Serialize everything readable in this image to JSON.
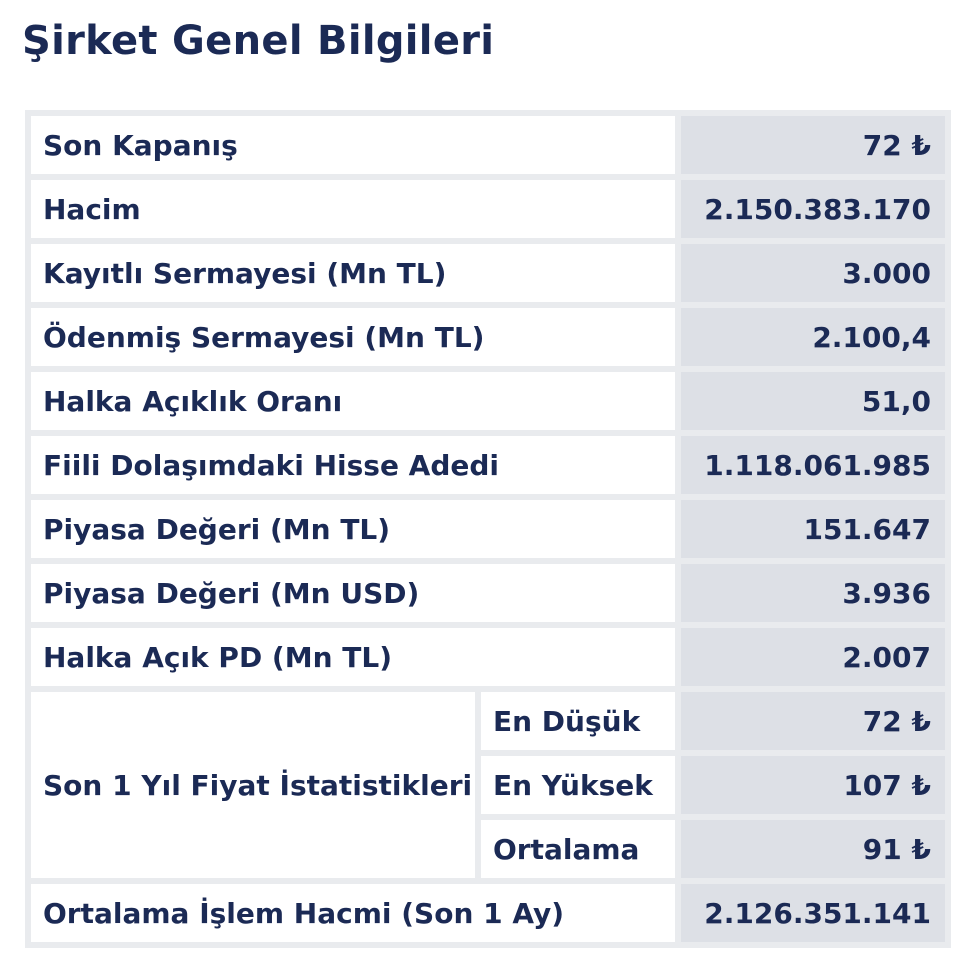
{
  "title": "Şirket Genel Bilgileri",
  "rows": [
    {
      "label": "Son Kapanış",
      "value": "72 ₺"
    },
    {
      "label": "Hacim",
      "value": "2.150.383.170"
    },
    {
      "label": "Kayıtlı Sermayesi (Mn TL)",
      "value": "3.000"
    },
    {
      "label": "Ödenmiş Sermayesi (Mn TL)",
      "value": "2.100,4"
    },
    {
      "label": "Halka Açıklık Oranı",
      "value": "51,0"
    },
    {
      "label": "Fiili Dolaşımdaki Hisse Adedi",
      "value": "1.118.061.985"
    },
    {
      "label": "Piyasa Değeri (Mn TL)",
      "value": "151.647"
    },
    {
      "label": "Piyasa Değeri (Mn USD)",
      "value": "3.936"
    },
    {
      "label": "Halka Açık PD (Mn TL)",
      "value": "2.007"
    }
  ],
  "price_stats": {
    "label": "Son 1 Yıl Fiyat İstatistikleri",
    "items": [
      {
        "label": "En Düşük",
        "value": "72 ₺"
      },
      {
        "label": "En Yüksek",
        "value": "107 ₺"
      },
      {
        "label": "Ortalama",
        "value": "91 ₺"
      }
    ]
  },
  "last_row": {
    "label": "Ortalama İşlem Hacmi (Son 1 Ay)",
    "value": "2.126.351.141"
  }
}
